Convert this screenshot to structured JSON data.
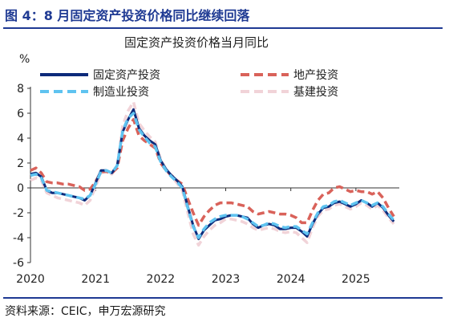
{
  "figure_title": "图 4：8 月固定资产投资价格同比继续回落",
  "source_note": "资料来源：CEIC，申万宏源研究",
  "chart_data": {
    "type": "line",
    "title": "固定资产投资价格当月同比",
    "ylabel": "%",
    "xlabel": "",
    "ylim": [
      -6,
      8
    ],
    "yticks": [
      -6,
      -4,
      -2,
      0,
      2,
      4,
      6,
      8
    ],
    "xlim": [
      "2020-01",
      "2025-09"
    ],
    "xticks": [
      "2020",
      "2021",
      "2022",
      "2023",
      "2024",
      "2025"
    ],
    "grid": false,
    "legend_position": "top",
    "x": [
      "2020-01",
      "2020-02",
      "2020-03",
      "2020-04",
      "2020-05",
      "2020-06",
      "2020-07",
      "2020-08",
      "2020-09",
      "2020-10",
      "2020-11",
      "2020-12",
      "2021-01",
      "2021-02",
      "2021-03",
      "2021-04",
      "2021-05",
      "2021-06",
      "2021-07",
      "2021-08",
      "2021-09",
      "2021-10",
      "2021-11",
      "2021-12",
      "2022-01",
      "2022-02",
      "2022-03",
      "2022-04",
      "2022-05",
      "2022-06",
      "2022-07",
      "2022-08",
      "2022-09",
      "2022-10",
      "2022-11",
      "2022-12",
      "2023-01",
      "2023-02",
      "2023-03",
      "2023-04",
      "2023-05",
      "2023-06",
      "2023-07",
      "2023-08",
      "2023-09",
      "2023-10",
      "2023-11",
      "2023-12",
      "2024-01",
      "2024-02",
      "2024-03",
      "2024-04",
      "2024-05",
      "2024-06",
      "2024-07",
      "2024-08",
      "2024-09",
      "2024-10",
      "2024-11",
      "2024-12",
      "2025-01",
      "2025-02",
      "2025-03",
      "2025-04",
      "2025-05",
      "2025-06",
      "2025-07",
      "2025-08"
    ],
    "series": [
      {
        "name": "固定资产投资",
        "color": "#0d2a7a",
        "dash": "solid",
        "values": [
          1.1,
          1.2,
          0.9,
          -0.2,
          -0.4,
          -0.4,
          -0.5,
          -0.6,
          -0.7,
          -0.8,
          -1.0,
          -0.6,
          0.4,
          1.4,
          1.4,
          1.2,
          1.8,
          4.5,
          5.5,
          6.3,
          4.8,
          4.2,
          3.8,
          3.5,
          2.2,
          1.5,
          1.0,
          0.6,
          0.1,
          -1.5,
          -3.0,
          -4.1,
          -3.4,
          -3.0,
          -2.6,
          -2.5,
          -2.3,
          -2.2,
          -2.2,
          -2.3,
          -2.4,
          -2.9,
          -3.2,
          -3.0,
          -2.9,
          -3.0,
          -3.3,
          -3.3,
          -3.2,
          -3.2,
          -3.5,
          -3.9,
          -2.9,
          -2.1,
          -1.6,
          -1.5,
          -1.2,
          -1.1,
          -1.3,
          -1.5,
          -1.3,
          -1.0,
          -1.2,
          -1.5,
          -1.2,
          -1.6,
          -2.2,
          -2.7
        ]
      },
      {
        "name": "地产投资",
        "color": "#d9625a",
        "dash": "dash",
        "values": [
          1.4,
          1.6,
          1.2,
          0.5,
          0.4,
          0.4,
          0.3,
          0.3,
          0.2,
          0.1,
          -0.2,
          -0.1,
          0.5,
          1.3,
          1.3,
          1.2,
          1.6,
          3.8,
          4.8,
          5.5,
          4.2,
          3.8,
          3.5,
          3.2,
          2.0,
          1.4,
          1.0,
          0.6,
          0.3,
          -0.9,
          -2.0,
          -3.0,
          -2.3,
          -1.8,
          -1.4,
          -1.2,
          -1.2,
          -1.2,
          -1.3,
          -1.4,
          -1.5,
          -1.9,
          -2.1,
          -2.0,
          -1.9,
          -2.0,
          -2.1,
          -2.1,
          -2.2,
          -2.4,
          -2.8,
          -2.8,
          -1.8,
          -1.0,
          -0.5,
          -0.4,
          0.0,
          0.1,
          -0.1,
          -0.3,
          -0.2,
          -0.3,
          -0.3,
          -0.5,
          -0.3,
          -0.8,
          -1.6,
          -2.3
        ]
      },
      {
        "name": "制造业投资",
        "color": "#5fc3f0",
        "dash": "dash",
        "values": [
          1.0,
          1.1,
          0.8,
          -0.2,
          -0.3,
          -0.4,
          -0.5,
          -0.6,
          -0.7,
          -0.8,
          -0.9,
          -0.6,
          0.3,
          1.3,
          1.4,
          1.2,
          1.8,
          4.6,
          5.6,
          6.0,
          4.7,
          4.1,
          3.6,
          3.3,
          2.1,
          1.4,
          0.9,
          0.5,
          0.0,
          -1.6,
          -3.1,
          -4.0,
          -3.3,
          -2.8,
          -2.5,
          -2.3,
          -2.2,
          -2.2,
          -2.2,
          -2.3,
          -2.5,
          -2.8,
          -3.1,
          -3.0,
          -2.8,
          -2.9,
          -3.1,
          -3.2,
          -3.1,
          -3.1,
          -3.4,
          -3.7,
          -2.8,
          -2.0,
          -1.5,
          -1.4,
          -1.1,
          -1.0,
          -1.2,
          -1.4,
          -1.2,
          -1.0,
          -1.2,
          -1.4,
          -1.2,
          -1.5,
          -2.1,
          -2.6
        ]
      },
      {
        "name": "基建投资",
        "color": "#f1d3d8",
        "dash": "dash",
        "values": [
          0.6,
          0.8,
          0.6,
          -0.4,
          -0.6,
          -0.8,
          -0.9,
          -1.0,
          -1.1,
          -1.2,
          -1.4,
          -1.0,
          0.1,
          1.2,
          1.3,
          1.1,
          1.8,
          5.0,
          6.2,
          6.9,
          5.2,
          4.6,
          4.1,
          3.7,
          2.3,
          1.5,
          0.9,
          0.4,
          -0.2,
          -2.0,
          -3.7,
          -4.6,
          -3.9,
          -3.4,
          -3.0,
          -2.8,
          -2.5,
          -2.5,
          -2.6,
          -2.7,
          -2.9,
          -3.2,
          -3.4,
          -3.3,
          -3.2,
          -3.3,
          -3.5,
          -3.6,
          -3.5,
          -3.6,
          -4.0,
          -4.4,
          -3.2,
          -2.3,
          -1.8,
          -1.7,
          -1.4,
          -1.3,
          -1.5,
          -1.7,
          -1.5,
          -1.2,
          -1.4,
          -1.7,
          -1.4,
          -1.8,
          -2.4,
          -2.9
        ]
      }
    ]
  }
}
